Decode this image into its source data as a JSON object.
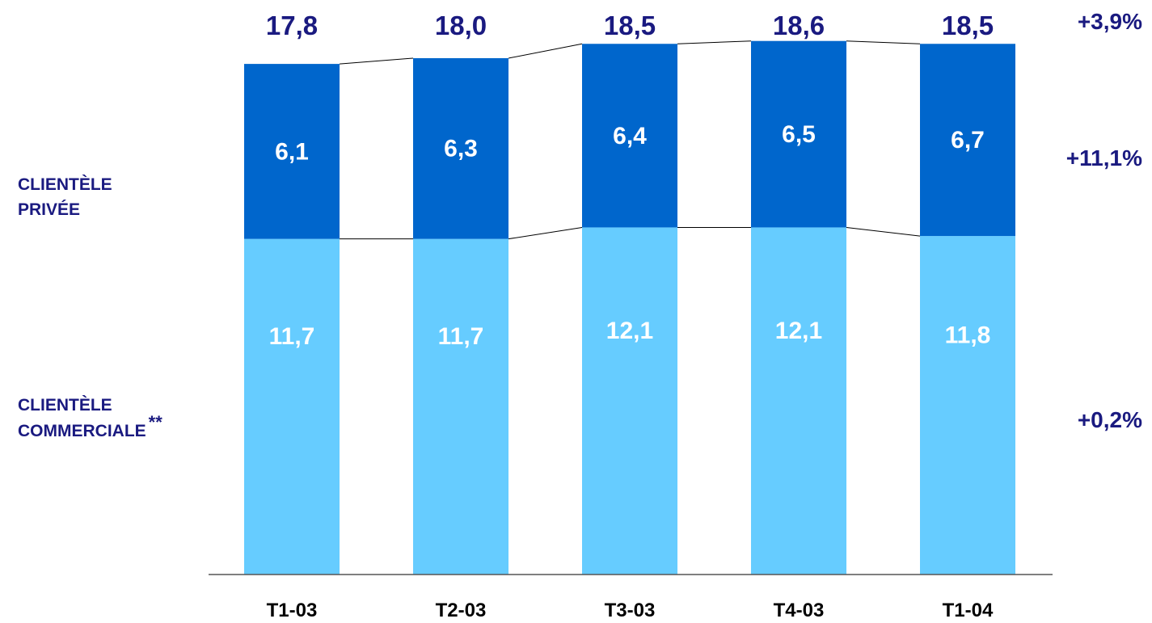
{
  "chart_data": {
    "type": "bar",
    "stacked": true,
    "categories": [
      "T1-03",
      "T2-03",
      "T3-03",
      "T4-03",
      "T1-04"
    ],
    "series": [
      {
        "name": "CLIENTÈLE COMMERCIALE",
        "values": [
          11.7,
          11.7,
          12.1,
          12.1,
          11.8
        ],
        "labels": [
          "11,7",
          "11,7",
          "12,1",
          "12,1",
          "11,8"
        ]
      },
      {
        "name": "CLIENTÈLE PRIVÉE",
        "values": [
          6.1,
          6.3,
          6.4,
          6.5,
          6.7
        ],
        "labels": [
          "6,1",
          "6,3",
          "6,4",
          "6,5",
          "6,7"
        ]
      }
    ],
    "totals": [
      17.8,
      18.0,
      18.5,
      18.6,
      18.5
    ],
    "total_labels": [
      "17,8",
      "18,0",
      "18,5",
      "18,6",
      "18,5"
    ],
    "growth": {
      "total": "+3,9%",
      "privee": "+11,1%",
      "commerciale": "+0,2%"
    },
    "series_labels": {
      "privee": [
        "CLIENTÈLE",
        "PRIVÉE"
      ],
      "commerciale": [
        "CLIENTÈLE",
        "COMMERCIALE"
      ],
      "footnote_mark": "**"
    },
    "colors": {
      "commerciale": "#66ccff",
      "privee": "#0066cc",
      "text_dark": "#1a1a80",
      "value_text": "#ffffff",
      "connector": "#000000"
    },
    "connector_lines": true,
    "grid": false,
    "legend": "left-side labels"
  }
}
